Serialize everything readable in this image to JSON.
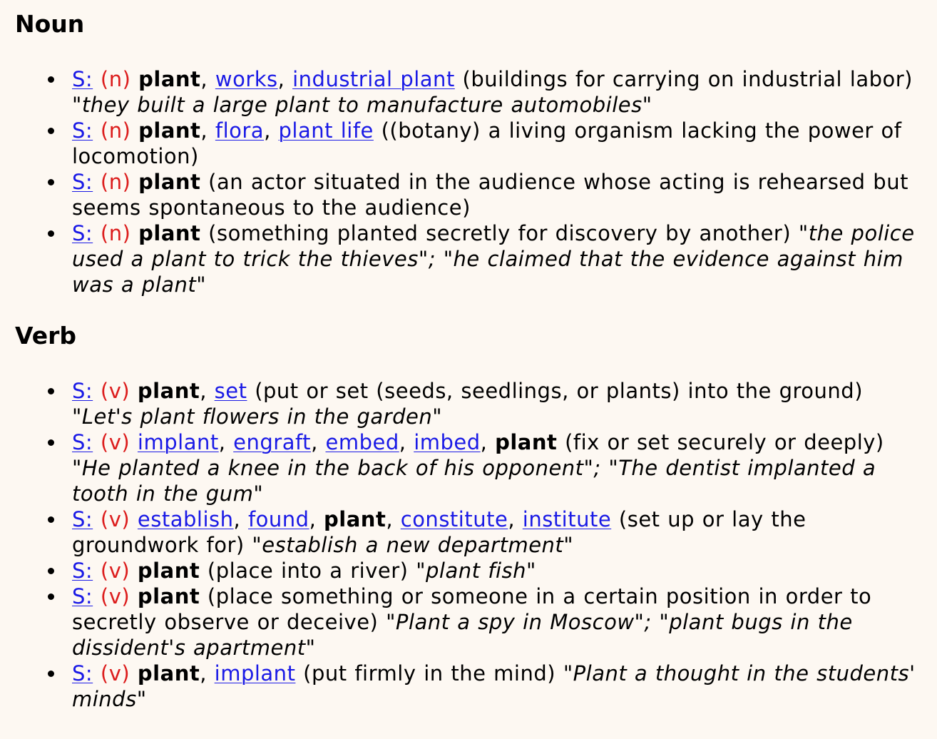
{
  "sections": [
    {
      "heading": "Noun",
      "senses": [
        {
          "s_label": "S:",
          "pos": "(n)",
          "words": [
            {
              "text": "plant",
              "type": "head"
            },
            {
              "text": "works",
              "type": "link"
            },
            {
              "text": "industrial plant",
              "type": "link"
            }
          ],
          "gloss": "(buildings for carrying on industrial labor)",
          "examples": "\"they built a large plant to manufacture automobiles\""
        },
        {
          "s_label": "S:",
          "pos": "(n)",
          "words": [
            {
              "text": "plant",
              "type": "head"
            },
            {
              "text": "flora",
              "type": "link"
            },
            {
              "text": "plant life",
              "type": "link"
            }
          ],
          "gloss": "((botany) a living organism lacking the power of locomotion)",
          "examples": ""
        },
        {
          "s_label": "S:",
          "pos": "(n)",
          "words": [
            {
              "text": "plant",
              "type": "head"
            }
          ],
          "gloss": "(an actor situated in the audience whose acting is rehearsed but seems spontaneous to the audience)",
          "examples": ""
        },
        {
          "s_label": "S:",
          "pos": "(n)",
          "words": [
            {
              "text": "plant",
              "type": "head"
            }
          ],
          "gloss": "(something planted secretly for discovery by another)",
          "examples": "\"the police used a plant to trick the thieves\"; \"he claimed that the evidence against him was a plant\""
        }
      ]
    },
    {
      "heading": "Verb",
      "senses": [
        {
          "s_label": "S:",
          "pos": "(v)",
          "words": [
            {
              "text": "plant",
              "type": "head"
            },
            {
              "text": "set",
              "type": "link"
            }
          ],
          "gloss": "(put or set (seeds, seedlings, or plants) into the ground)",
          "examples": "\"Let's plant flowers in the garden\""
        },
        {
          "s_label": "S:",
          "pos": "(v)",
          "words": [
            {
              "text": "implant",
              "type": "link"
            },
            {
              "text": "engraft",
              "type": "link"
            },
            {
              "text": "embed",
              "type": "link"
            },
            {
              "text": "imbed",
              "type": "link"
            },
            {
              "text": "plant",
              "type": "head"
            }
          ],
          "gloss": "(fix or set securely or deeply)",
          "examples": "\"He planted a knee in the back of his opponent\"; \"The dentist implanted a tooth in the gum\""
        },
        {
          "s_label": "S:",
          "pos": "(v)",
          "words": [
            {
              "text": "establish",
              "type": "link"
            },
            {
              "text": "found",
              "type": "link"
            },
            {
              "text": "plant",
              "type": "head"
            },
            {
              "text": "constitute",
              "type": "link"
            },
            {
              "text": "institute",
              "type": "link"
            }
          ],
          "gloss": "(set up or lay the groundwork for)",
          "examples": "\"establish a new department\""
        },
        {
          "s_label": "S:",
          "pos": "(v)",
          "words": [
            {
              "text": "plant",
              "type": "head"
            }
          ],
          "gloss": "(place into a river)",
          "examples": "\"plant fish\""
        },
        {
          "s_label": "S:",
          "pos": "(v)",
          "words": [
            {
              "text": "plant",
              "type": "head"
            }
          ],
          "gloss": "(place something or someone in a certain position in order to secretly observe or deceive)",
          "examples": "\"Plant a spy in Moscow\"; \"plant bugs in the dissident's apartment\""
        },
        {
          "s_label": "S:",
          "pos": "(v)",
          "words": [
            {
              "text": "plant",
              "type": "head"
            },
            {
              "text": "implant",
              "type": "link"
            }
          ],
          "gloss": "(put firmly in the mind)",
          "examples": "\"Plant a thought in the students' minds\""
        }
      ]
    }
  ]
}
